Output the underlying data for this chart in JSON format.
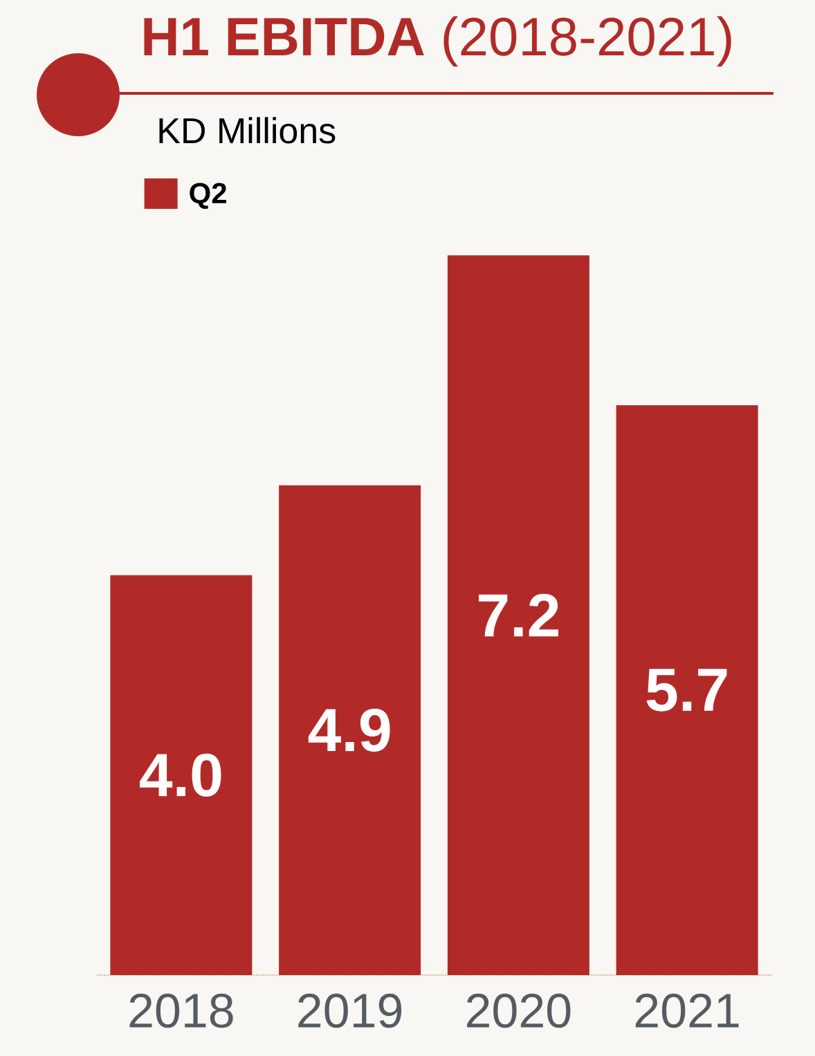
{
  "chart_data": {
    "type": "bar",
    "title": "**H1 EBITDA** (2018-2021)",
    "subtitle": "KD Millions",
    "categories": [
      "2018",
      "2019",
      "2020",
      "2021"
    ],
    "series": [
      {
        "name": "Q2",
        "color": "#b22a27",
        "values": [
          4.0,
          4.9,
          7.2,
          5.7
        ],
        "value_labels": [
          "4.0",
          "4.9",
          "7.2",
          "5.7"
        ]
      }
    ],
    "legend": "top left",
    "grid": false
  }
}
